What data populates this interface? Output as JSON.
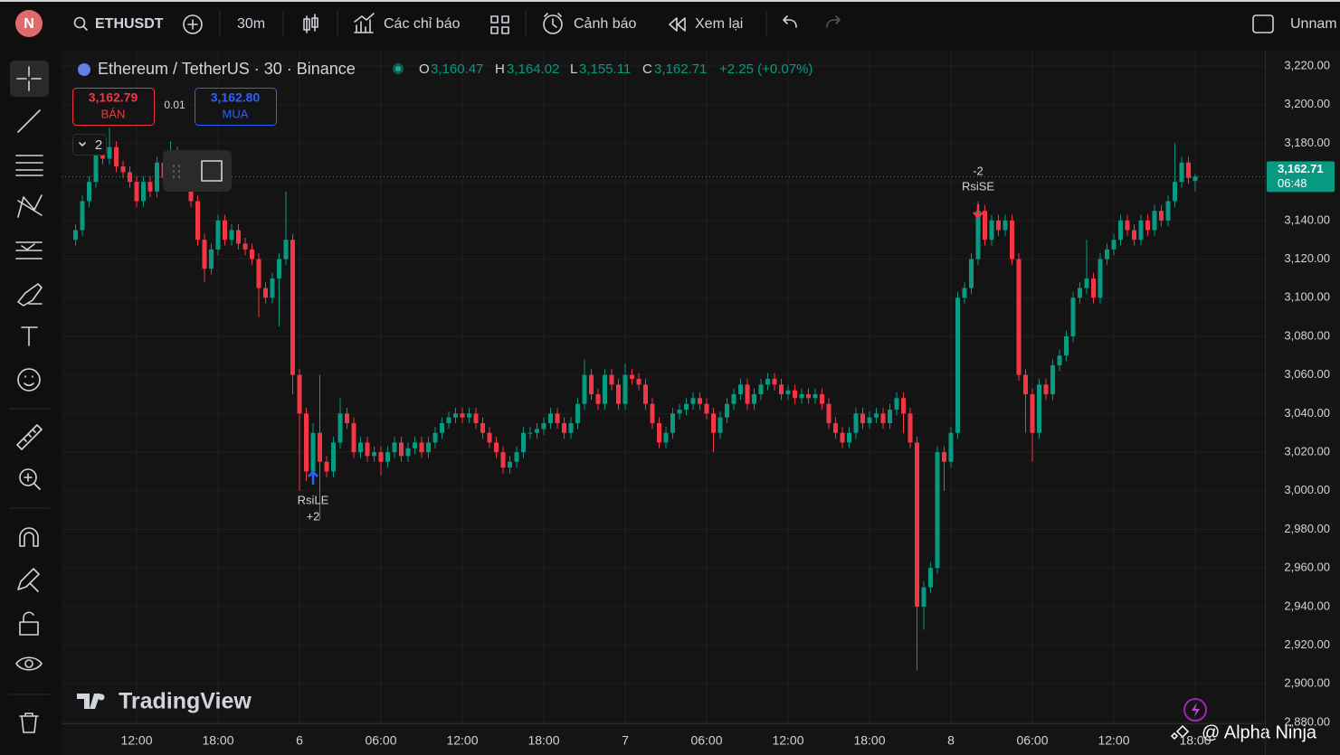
{
  "toolbar": {
    "avatar": "N",
    "symbol": "ETHUSDT",
    "interval": "30m",
    "indicators": "Các chỉ báo",
    "alerts": "Cảnh báo",
    "replay": "Xem lại",
    "layout": "Unnam"
  },
  "chart_data": {
    "type": "candlestick",
    "title": "Ethereum / TetherUS · 30 · Binance",
    "legend": {
      "open_label": "O",
      "open": "3,160.47",
      "high_label": "H",
      "high": "3,164.02",
      "low_label": "L",
      "low": "3,155.11",
      "close_label": "C",
      "close": "3,162.71",
      "change": "+2.25 (+0.07%)"
    },
    "trade": {
      "sell_price": "3,162.79",
      "sell_label": "BÁN",
      "spread": "0.01",
      "buy_price": "3,162.80",
      "buy_label": "MUA"
    },
    "indicator_count": "2",
    "annotations": [
      {
        "label": "RsiLE",
        "qty": "+2"
      },
      {
        "label": "RsiSE",
        "qty": "-2"
      }
    ],
    "last_price": {
      "value": 3162.71,
      "label": "3,162.71",
      "countdown": "06:48"
    },
    "up_color": "#089981",
    "down_color": "#f23645",
    "grid": true,
    "open": [
      3130,
      3135,
      3150,
      3160,
      3175,
      3172,
      3178,
      3168,
      3165,
      3160,
      3150,
      3160,
      3155,
      3170,
      3162,
      3175,
      3168,
      3160,
      3150,
      3130,
      3115,
      3125,
      3140,
      3130,
      3135,
      3128,
      3125,
      3120,
      3105,
      3100,
      3110,
      3120,
      3130,
      3060,
      3040,
      3010,
      3030,
      3015,
      3010,
      3025,
      3040,
      3035,
      3020,
      3025,
      3018,
      3020,
      3015,
      3020,
      3025,
      3018,
      3022,
      3025,
      3020,
      3025,
      3030,
      3035,
      3038,
      3040,
      3038,
      3040,
      3035,
      3030,
      3025,
      3020,
      3012,
      3015,
      3020,
      3030,
      3030,
      3032,
      3035,
      3040,
      3035,
      3030,
      3035,
      3045,
      3060,
      3050,
      3045,
      3060,
      3055,
      3045,
      3060,
      3058,
      3055,
      3045,
      3035,
      3025,
      3030,
      3040,
      3042,
      3045,
      3048,
      3045,
      3040,
      3030,
      3038,
      3045,
      3050,
      3055,
      3045,
      3050,
      3055,
      3058,
      3055,
      3050,
      3052,
      3048,
      3050,
      3048,
      3050,
      3045,
      3035,
      3030,
      3025,
      3030,
      3040,
      3035,
      3038,
      3040,
      3035,
      3042,
      3048,
      3040,
      3025,
      2940,
      2950,
      2960,
      3020,
      3015,
      3030,
      3100,
      3105,
      3120,
      3145,
      3130,
      3140,
      3135,
      3140,
      3120,
      3060,
      3050,
      3030,
      3055,
      3050,
      3065,
      3070,
      3080,
      3100,
      3105,
      3110,
      3100,
      3120,
      3125,
      3130,
      3140,
      3135,
      3130,
      3140,
      3135,
      3145,
      3140,
      3150,
      3160,
      3170,
      3160.47
    ],
    "high": [
      3138,
      3153,
      3163,
      3178,
      3178,
      3188,
      3181,
      3171,
      3168,
      3163,
      3163,
      3163,
      3173,
      3173,
      3181,
      3178,
      3171,
      3163,
      3153,
      3133,
      3128,
      3143,
      3143,
      3138,
      3138,
      3131,
      3128,
      3123,
      3108,
      3113,
      3123,
      3155,
      3133,
      3063,
      3043,
      3035,
      3060,
      3018,
      3028,
      3048,
      3043,
      3038,
      3028,
      3028,
      3023,
      3023,
      3023,
      3028,
      3028,
      3025,
      3028,
      3028,
      3028,
      3033,
      3038,
      3041,
      3043,
      3043,
      3043,
      3043,
      3038,
      3033,
      3028,
      3023,
      3018,
      3023,
      3033,
      3033,
      3035,
      3038,
      3043,
      3043,
      3038,
      3038,
      3048,
      3068,
      3063,
      3053,
      3063,
      3063,
      3058,
      3066,
      3063,
      3061,
      3058,
      3048,
      3038,
      3033,
      3043,
      3045,
      3048,
      3051,
      3051,
      3048,
      3043,
      3041,
      3048,
      3053,
      3058,
      3058,
      3053,
      3058,
      3061,
      3061,
      3058,
      3055,
      3055,
      3053,
      3053,
      3053,
      3053,
      3048,
      3038,
      3033,
      3033,
      3043,
      3043,
      3041,
      3043,
      3043,
      3045,
      3051,
      3051,
      3043,
      3028,
      2953,
      2963,
      3023,
      3023,
      3033,
      3103,
      3108,
      3123,
      3150,
      3148,
      3143,
      3143,
      3143,
      3143,
      3123,
      3063,
      3053,
      3058,
      3058,
      3068,
      3073,
      3083,
      3103,
      3108,
      3130,
      3113,
      3123,
      3128,
      3133,
      3143,
      3143,
      3138,
      3143,
      3143,
      3148,
      3148,
      3153,
      3180,
      3173,
      3173,
      3164.02
    ],
    "low": [
      3127,
      3132,
      3147,
      3157,
      3169,
      3169,
      3165,
      3162,
      3157,
      3147,
      3147,
      3152,
      3152,
      3159,
      3159,
      3165,
      3157,
      3147,
      3127,
      3108,
      3112,
      3122,
      3127,
      3127,
      3125,
      3122,
      3117,
      3090,
      3097,
      3097,
      3085,
      3117,
      3050,
      3000,
      3005,
      3007,
      2985,
      3007,
      3007,
      3022,
      3032,
      3017,
      3017,
      3015,
      3015,
      3008,
      3012,
      3017,
      3015,
      3015,
      3019,
      3017,
      3017,
      3022,
      3027,
      3032,
      3035,
      3035,
      3035,
      3032,
      3027,
      3022,
      3017,
      3009,
      3009,
      3012,
      3017,
      3027,
      3027,
      3029,
      3032,
      3032,
      3027,
      3027,
      3032,
      3042,
      3047,
      3042,
      3042,
      3052,
      3042,
      3042,
      3055,
      3052,
      3042,
      3032,
      3022,
      3022,
      3027,
      3037,
      3039,
      3042,
      3042,
      3037,
      3020,
      3027,
      3035,
      3042,
      3047,
      3042,
      3042,
      3047,
      3052,
      3052,
      3047,
      3047,
      3045,
      3045,
      3045,
      3045,
      3042,
      3032,
      3027,
      3022,
      3022,
      3027,
      3032,
      3032,
      3035,
      3032,
      3032,
      3039,
      3030,
      3022,
      2907,
      2928,
      2947,
      2957,
      3000,
      3012,
      3027,
      3097,
      3102,
      3117,
      3127,
      3127,
      3132,
      3132,
      3117,
      3057,
      3030,
      3015,
      3027,
      3047,
      3047,
      3062,
      3067,
      3077,
      3097,
      3102,
      3097,
      3097,
      3117,
      3122,
      3127,
      3132,
      3127,
      3127,
      3132,
      3132,
      3137,
      3137,
      3147,
      3157,
      3159,
      3155.11
    ],
    "close": [
      3135,
      3150,
      3160,
      3175,
      3172,
      3178,
      3168,
      3165,
      3160,
      3150,
      3160,
      3155,
      3170,
      3162,
      3175,
      3168,
      3160,
      3150,
      3130,
      3115,
      3125,
      3140,
      3130,
      3135,
      3128,
      3125,
      3120,
      3105,
      3100,
      3110,
      3120,
      3130,
      3060,
      3040,
      3010,
      3030,
      3015,
      3010,
      3025,
      3040,
      3035,
      3020,
      3025,
      3018,
      3020,
      3015,
      3020,
      3025,
      3018,
      3022,
      3025,
      3020,
      3025,
      3030,
      3035,
      3038,
      3040,
      3038,
      3040,
      3035,
      3030,
      3025,
      3020,
      3012,
      3015,
      3020,
      3030,
      3030,
      3032,
      3035,
      3040,
      3035,
      3030,
      3035,
      3045,
      3060,
      3050,
      3045,
      3060,
      3055,
      3045,
      3060,
      3058,
      3055,
      3045,
      3035,
      3025,
      3030,
      3040,
      3042,
      3045,
      3048,
      3045,
      3040,
      3030,
      3038,
      3045,
      3050,
      3055,
      3045,
      3050,
      3055,
      3058,
      3055,
      3050,
      3052,
      3048,
      3050,
      3048,
      3050,
      3045,
      3035,
      3030,
      3025,
      3030,
      3040,
      3035,
      3038,
      3040,
      3035,
      3042,
      3048,
      3040,
      3025,
      2940,
      2950,
      2960,
      3020,
      3015,
      3030,
      3100,
      3105,
      3120,
      3145,
      3130,
      3140,
      3135,
      3140,
      3120,
      3060,
      3050,
      3030,
      3055,
      3050,
      3065,
      3070,
      3080,
      3100,
      3105,
      3110,
      3100,
      3120,
      3125,
      3130,
      3140,
      3135,
      3130,
      3140,
      3135,
      3145,
      3140,
      3150,
      3160,
      3170,
      3162,
      3162.71
    ],
    "ylim": [
      2880,
      3220
    ],
    "yticks": [
      {
        "value": 2880,
        "label": "2,880.00"
      },
      {
        "value": 2900,
        "label": "2,900.00"
      },
      {
        "value": 2920,
        "label": "2,920.00"
      },
      {
        "value": 2940,
        "label": "2,940.00"
      },
      {
        "value": 2960,
        "label": "2,960.00"
      },
      {
        "value": 2980,
        "label": "2,980.00"
      },
      {
        "value": 3000,
        "label": "3,000.00"
      },
      {
        "value": 3020,
        "label": "3,020.00"
      },
      {
        "value": 3040,
        "label": "3,040.00"
      },
      {
        "value": 3060,
        "label": "3,060.00"
      },
      {
        "value": 3080,
        "label": "3,080.00"
      },
      {
        "value": 3100,
        "label": "3,100.00"
      },
      {
        "value": 3120,
        "label": "3,120.00"
      },
      {
        "value": 3140,
        "label": "3,140.00"
      },
      {
        "value": 3160,
        "label": "3,160.00"
      },
      {
        "value": 3180,
        "label": "3,180.00"
      },
      {
        "value": 3200,
        "label": "3,200.00"
      },
      {
        "value": 3220,
        "label": "3,220.00"
      }
    ],
    "xticks": [
      {
        "value": 9,
        "label": "12:00"
      },
      {
        "value": 21,
        "label": "18:00"
      },
      {
        "value": 33,
        "label": "6"
      },
      {
        "value": 45,
        "label": "06:00"
      },
      {
        "value": 57,
        "label": "12:00"
      },
      {
        "value": 69,
        "label": "18:00"
      },
      {
        "value": 81,
        "label": "7"
      },
      {
        "value": 93,
        "label": "06:00"
      },
      {
        "value": 105,
        "label": "12:00"
      },
      {
        "value": 117,
        "label": "18:00"
      },
      {
        "value": 129,
        "label": "8"
      },
      {
        "value": 141,
        "label": "06:00"
      },
      {
        "value": 153,
        "label": "12:00"
      },
      {
        "value": 165,
        "label": "18:00"
      }
    ]
  },
  "watermark": "TradingView",
  "credit": "@ Alpha Ninja"
}
